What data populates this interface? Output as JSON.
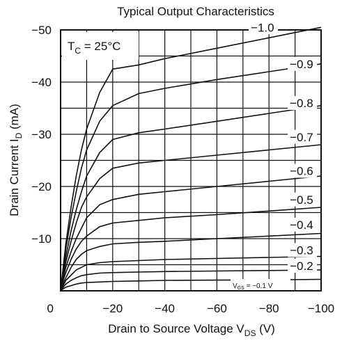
{
  "chart_data": {
    "type": "line",
    "title": "Typical Output Characteristics",
    "xlabel": {
      "main": "Drain to Source Voltage  V",
      "sub": "DS",
      "unit": "  (V)"
    },
    "ylabel": {
      "main": "Drain Current  I",
      "sub": "D",
      "unit": "  (mA)"
    },
    "condition": {
      "main": "T",
      "sub": "C",
      "rest": " = 25°C"
    },
    "xlim": [
      0,
      -100
    ],
    "ylim": [
      0,
      -50
    ],
    "x_ticks": [
      "0",
      "−20",
      "−40",
      "−60",
      "−80",
      "−100"
    ],
    "y_ticks": [
      "−10",
      "−20",
      "−30",
      "−40",
      "−50"
    ],
    "grid": true,
    "vgs_note": {
      "prefix": "V",
      "sub": "GS",
      "rest": " = −0.1 V"
    },
    "x": [
      0,
      -1,
      -2,
      -4,
      -6,
      -8,
      -10,
      -15,
      -20,
      -30,
      -40,
      -60,
      -80,
      -100
    ],
    "series": [
      {
        "name": "−1.0",
        "values": [
          0,
          -4.5,
          -9,
          -16,
          -22,
          -27,
          -31,
          -38,
          -42.5,
          -43.3,
          -44.5,
          -46.5,
          -48.5,
          -50.5
        ]
      },
      {
        "name": "−0.9",
        "values": [
          0,
          -4,
          -8,
          -14,
          -19,
          -23.5,
          -27,
          -32.5,
          -35.5,
          -37.8,
          -38.8,
          -40.5,
          -42,
          -43.5
        ]
      },
      {
        "name": "−0.8",
        "values": [
          0,
          -3.5,
          -6.5,
          -11.5,
          -15.5,
          -19,
          -22,
          -26.5,
          -29,
          -30.3,
          -31,
          -32.5,
          -34,
          -35.5
        ]
      },
      {
        "name": "−0.7",
        "values": [
          0,
          -3,
          -5.5,
          -9.5,
          -13,
          -16,
          -18,
          -21.5,
          -23.5,
          -24.5,
          -25,
          -26,
          -27,
          -28
        ]
      },
      {
        "name": "−0.6",
        "values": [
          0,
          -2.5,
          -4.5,
          -7.5,
          -10,
          -12,
          -14,
          -16.5,
          -17.5,
          -18.5,
          -19,
          -20,
          -21,
          -22
        ]
      },
      {
        "name": "−0.5",
        "values": [
          0,
          -2,
          -3.5,
          -6,
          -8,
          -9.5,
          -10.5,
          -12.3,
          -13,
          -13.5,
          -14,
          -14.6,
          -15.3,
          -16
        ]
      },
      {
        "name": "−0.4",
        "values": [
          0,
          -1.5,
          -2.5,
          -4.5,
          -6,
          -7,
          -7.7,
          -8.5,
          -9,
          -9.3,
          -9.5,
          -10,
          -10.5,
          -11
        ]
      },
      {
        "name": "−0.3",
        "values": [
          0,
          -1,
          -2,
          -3,
          -4,
          -4.5,
          -5,
          -5.4,
          -5.6,
          -5.8,
          -6,
          -6.2,
          -6.4,
          -6.6
        ]
      },
      {
        "name": "−0.2",
        "values": [
          0,
          -0.7,
          -1.3,
          -2,
          -2.5,
          -2.9,
          -3.1,
          -3.4,
          -3.5,
          -3.6,
          -3.7,
          -3.8,
          -3.9,
          -4
        ]
      },
      {
        "name": "",
        "values": [
          0,
          -0.4,
          -0.7,
          -1,
          -1.3,
          -1.5,
          -1.6,
          -1.7,
          -1.8,
          -1.9,
          -2,
          -2.05,
          -2.1,
          -2.2
        ]
      }
    ]
  }
}
